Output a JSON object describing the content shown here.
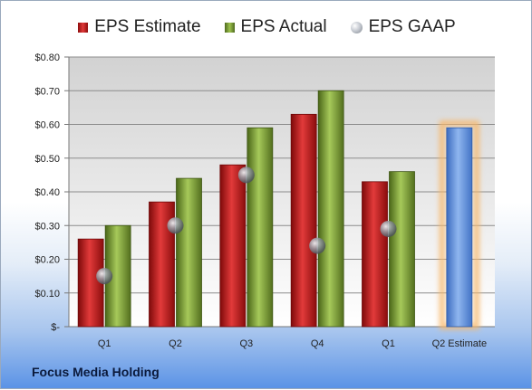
{
  "company": "Focus Media Holding",
  "chart_data": {
    "type": "bar",
    "categories": [
      "Q1",
      "Q2",
      "Q3",
      "Q4",
      "Q1",
      "Q2 Estimate"
    ],
    "series": [
      {
        "name": "EPS Estimate",
        "color": "#c42020",
        "values": [
          0.26,
          0.37,
          0.48,
          0.63,
          0.43,
          null
        ]
      },
      {
        "name": "EPS Actual",
        "color": "#7fa03a",
        "values": [
          0.3,
          0.44,
          0.59,
          0.7,
          0.46,
          null
        ]
      },
      {
        "name": "EPS GAAP",
        "color": "#9ea4ad",
        "marker": "sphere",
        "values": [
          0.15,
          0.3,
          0.45,
          0.24,
          0.29,
          null
        ]
      },
      {
        "name": "Q2 Estimate",
        "color": "#6b9be0",
        "highlight": "#f7b76b",
        "values": [
          null,
          null,
          null,
          null,
          null,
          0.59
        ]
      }
    ],
    "yticks": [
      "$-",
      "$0.10",
      "$0.20",
      "$0.30",
      "$0.40",
      "$0.50",
      "$0.60",
      "$0.70",
      "$0.80"
    ],
    "ylim": [
      0,
      0.8
    ],
    "grid": true,
    "legend_placement": "top-center"
  }
}
